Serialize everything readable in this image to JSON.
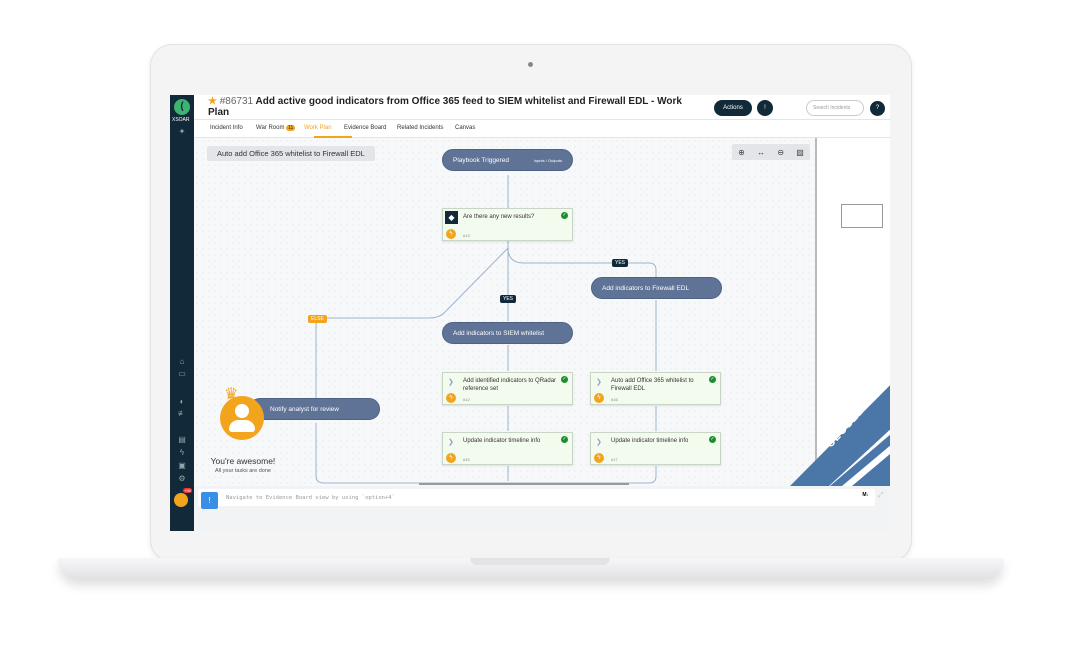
{
  "app": {
    "logo_text": "XSOAR",
    "logo_glyph": "(",
    "avatar_badge": "+99"
  },
  "header": {
    "incident_number": "#86731",
    "title": "Add active good indicators from Office 365 feed to SIEM whitelist and Firewall EDL - Work Plan",
    "actions_label": "Actions",
    "more_label": "!",
    "search_placeholder": "Search Incidents",
    "help_label": "?"
  },
  "tabs": [
    {
      "label": "Incident Info"
    },
    {
      "label": "War Room",
      "badge": "11"
    },
    {
      "label": "Work Plan",
      "active": true
    },
    {
      "label": "Evidence Board"
    },
    {
      "label": "Related Incidents"
    },
    {
      "label": "Canvas"
    }
  ],
  "canvas": {
    "playbook_name": "Auto add Office 365 whitelist to Firewall EDL",
    "zoom_tools": [
      "zoom-in-icon",
      "fit-width-icon",
      "zoom-out-icon",
      "image-icon"
    ],
    "start": {
      "label": "Playbook Triggered",
      "io": "Inputs / Outputs"
    },
    "condition": {
      "label": "Are there any new results?",
      "id": "#13"
    },
    "branch_labels": {
      "yes": "YES",
      "else": "ELSE"
    },
    "sections": {
      "siem": "Add indicators to SIEM whitelist",
      "edl": "Add indicators to Firewall EDL",
      "notify": "Notify analyst for review"
    },
    "tasks": [
      {
        "label": "Add identified indicators to QRadar reference set",
        "id": "#12",
        "status": "completed"
      },
      {
        "label": "Auto add Office 365 whitelist to Firewall EDL",
        "id": "#16",
        "status": "completed"
      },
      {
        "label": "Update indicator timeline info",
        "id": "#15",
        "status": "completed"
      },
      {
        "label": "Update indicator timeline info",
        "id": "#17",
        "status": "completed"
      }
    ],
    "status_ribbon": "CLOSED",
    "tasks_done": {
      "title": "You're awesome!",
      "subtitle": "All your tasks are done"
    }
  },
  "cli": {
    "hint": "Navigate to Evidence Board view by using `option+4`",
    "markdown_label": "M↓"
  },
  "colors": {
    "accent": "#f3a41d",
    "nav": "#12293a",
    "section": "#5f7397",
    "task_bg": "#f3fbef",
    "closed": "#4a76a8"
  }
}
